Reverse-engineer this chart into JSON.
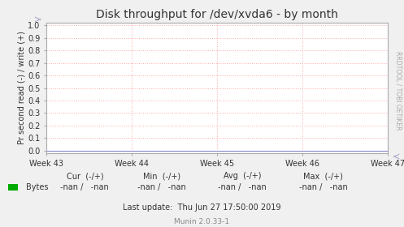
{
  "title": "Disk throughput for /dev/xvda6 - by month",
  "ylabel": "Pr second read (-) / write (+)",
  "background_color": "#F0F0F0",
  "plot_bg_color": "#FFFFFF",
  "grid_color": "#FFAAAA",
  "border_color": "#CCCCCC",
  "ylim": [
    0.0,
    1.0
  ],
  "yticks": [
    0.0,
    0.1,
    0.2,
    0.3,
    0.4,
    0.5,
    0.6,
    0.7,
    0.8,
    0.9,
    1.0
  ],
  "xtick_labels": [
    "Week 43",
    "Week 44",
    "Week 45",
    "Week 46",
    "Week 47"
  ],
  "xtick_positions": [
    0.0,
    0.25,
    0.5,
    0.75,
    1.0
  ],
  "xlim": [
    0.0,
    1.0
  ],
  "legend_color": "#00AA00",
  "title_fontsize": 10,
  "axis_label_fontsize": 7,
  "tick_fontsize": 7,
  "footer_fontsize": 7,
  "side_fontsize": 5.5
}
